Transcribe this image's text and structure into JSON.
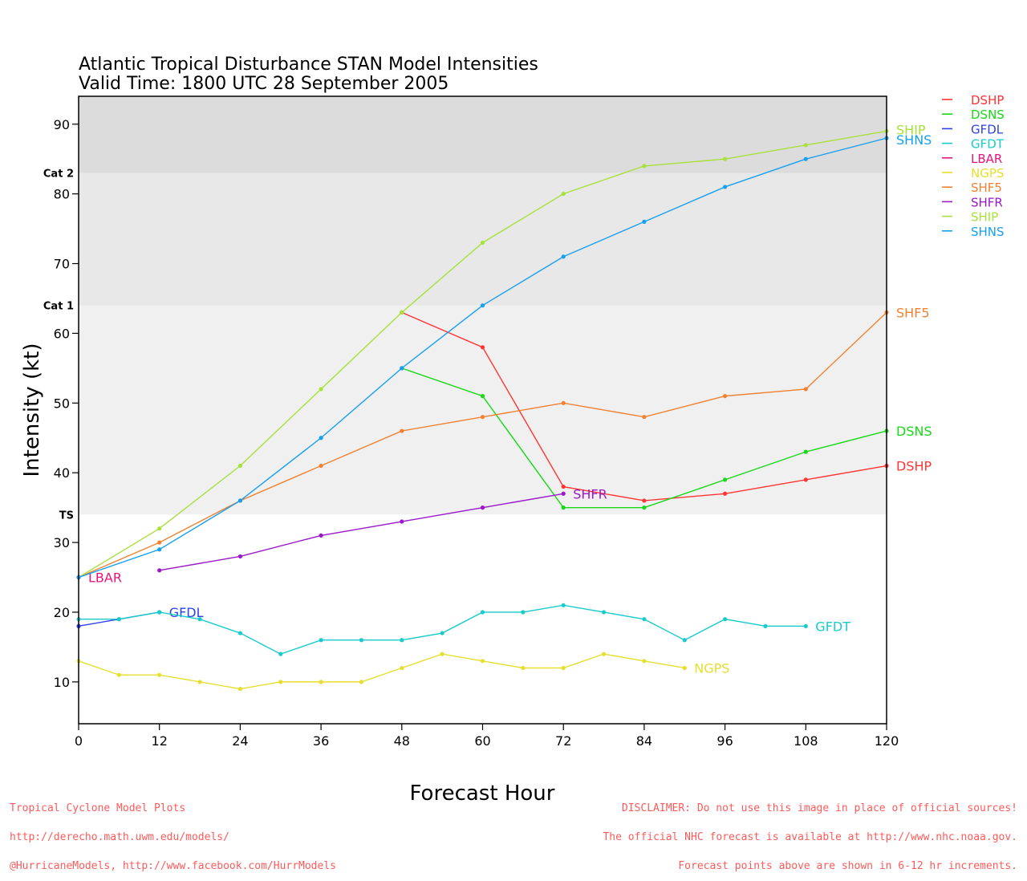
{
  "footer": {
    "left_lines": [
      "Tropical Cyclone Model Plots",
      "http://derecho.math.uwm.edu/models/",
      "@HurricaneModels, http://www.facebook.com/HurrModels"
    ],
    "right_lines": [
      "DISCLAIMER: Do not use this image in place of official sources!",
      "The official NHC forecast is available at http://www.nhc.noaa.gov.",
      "Forecast points above are shown in 6-12 hr increments."
    ]
  },
  "chart_data": {
    "type": "line",
    "title": "Atlantic Tropical Disturbance STAN Model Intensities",
    "subtitle": "Valid Time: 1800 UTC 28 September 2005",
    "xlabel": "Forecast Hour",
    "ylabel": "Intensity (kt)",
    "xlim": [
      0,
      120
    ],
    "ylim": [
      4,
      94
    ],
    "xticks": [
      0,
      12,
      24,
      36,
      48,
      60,
      72,
      84,
      96,
      108,
      120
    ],
    "yticks": [
      10,
      20,
      30,
      40,
      50,
      60,
      70,
      80,
      90
    ],
    "grid": false,
    "legend_position": "right",
    "bands": [
      {
        "label": "TS",
        "from": 34,
        "to": 64,
        "color": "#f0f0f0"
      },
      {
        "label": "Cat 1",
        "from": 64,
        "to": 83,
        "color": "#e8e8e8"
      },
      {
        "label": "Cat 2",
        "from": 83,
        "to": 94,
        "color": "#dcdcdc"
      }
    ],
    "series": [
      {
        "name": "DSHP",
        "color": "#ff3535",
        "x": [
          48,
          60,
          72,
          84,
          96,
          108,
          120
        ],
        "y": [
          63,
          58,
          38,
          36,
          37,
          39,
          41
        ],
        "label_at": "end"
      },
      {
        "name": "DSNS",
        "color": "#18d818",
        "x": [
          48,
          60,
          72,
          84,
          96,
          108,
          120
        ],
        "y": [
          55,
          51,
          35,
          35,
          39,
          43,
          46
        ],
        "label_at": "end"
      },
      {
        "name": "GFDL",
        "color": "#2a42e8",
        "x": [
          0,
          6,
          12
        ],
        "y": [
          18,
          19,
          20
        ],
        "label_at": "end"
      },
      {
        "name": "GFDT",
        "color": "#18cccc",
        "x": [
          0,
          6,
          12,
          18,
          24,
          30,
          36,
          42,
          48,
          54,
          60,
          66,
          72,
          78,
          84,
          90,
          96,
          102,
          108
        ],
        "y": [
          19,
          19,
          20,
          19,
          17,
          14,
          16,
          16,
          16,
          17,
          20,
          20,
          21,
          20,
          19,
          16,
          19,
          18,
          18
        ],
        "label_at": "end"
      },
      {
        "name": "LBAR",
        "color": "#e8147c",
        "x": [
          0
        ],
        "y": [
          25
        ],
        "label_at": "end"
      },
      {
        "name": "NGPS",
        "color": "#e6df2e",
        "x": [
          0,
          6,
          12,
          18,
          24,
          30,
          36,
          42,
          48,
          54,
          60,
          66,
          72,
          78,
          84,
          90
        ],
        "y": [
          13,
          11,
          11,
          10,
          9,
          10,
          10,
          10,
          12,
          14,
          13,
          12,
          12,
          14,
          13,
          12
        ],
        "label_at": "end"
      },
      {
        "name": "SHF5",
        "color": "#f08232",
        "x": [
          0,
          12,
          24,
          36,
          48,
          60,
          72,
          84,
          96,
          108,
          120
        ],
        "y": [
          25,
          30,
          36,
          41,
          46,
          48,
          50,
          48,
          51,
          52,
          63
        ],
        "label_at": "end"
      },
      {
        "name": "SHFR",
        "color": "#9a18c8",
        "x": [
          12,
          24,
          36,
          48,
          60,
          72
        ],
        "y": [
          26,
          28,
          31,
          33,
          35,
          37
        ],
        "label_at": "end"
      },
      {
        "name": "SHIP",
        "color": "#a8e03c",
        "x": [
          0,
          12,
          24,
          36,
          48,
          60,
          72,
          84,
          96,
          108,
          120
        ],
        "y": [
          25,
          32,
          41,
          52,
          63,
          73,
          80,
          84,
          85,
          87,
          89
        ],
        "label_at": "end"
      },
      {
        "name": "SHNS",
        "color": "#18a0f0",
        "x": [
          0,
          12,
          24,
          36,
          48,
          60,
          72,
          84,
          96,
          108,
          120
        ],
        "y": [
          25,
          29,
          36,
          45,
          55,
          64,
          71,
          76,
          81,
          85,
          88
        ],
        "label_at": "end"
      }
    ]
  }
}
